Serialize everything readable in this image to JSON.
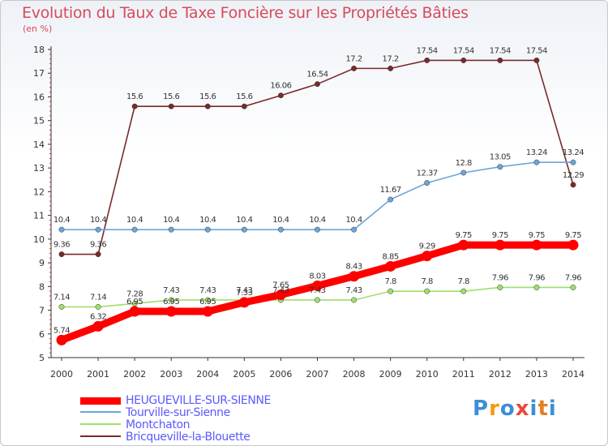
{
  "title": "Evolution du Taux de Taxe Foncière sur les Propriétés Bâties",
  "unit": "(en %)",
  "logo": {
    "letters": [
      "P",
      "r",
      "o",
      "x",
      "i",
      "t",
      "i"
    ],
    "colors": [
      "#3b8fd6",
      "#f39c12",
      "#3b8fd6",
      "#e74c3c",
      "#3b8fd6",
      "#e67e22",
      "#3b8fd6"
    ]
  },
  "chart_data": {
    "type": "line",
    "x": [
      2000,
      2001,
      2002,
      2003,
      2004,
      2005,
      2006,
      2007,
      2008,
      2009,
      2010,
      2011,
      2012,
      2013,
      2014
    ],
    "ylim": [
      5,
      18
    ],
    "yticks": [
      5,
      6,
      7,
      8,
      9,
      10,
      11,
      12,
      13,
      14,
      15,
      16,
      17,
      18
    ],
    "grid": false,
    "legend_position": "bottom-left",
    "series": [
      {
        "name": "HEUGUEVILLE-SUR-SIENNE",
        "color": "#ff0000",
        "emphasis": true,
        "values": [
          5.74,
          6.32,
          6.95,
          6.95,
          6.95,
          7.33,
          7.65,
          8.03,
          8.43,
          8.85,
          9.29,
          9.75,
          9.75,
          9.75,
          9.75
        ],
        "labels": [
          "5.74",
          "6.32",
          "6.95",
          "6.95",
          "6.95",
          "7.33",
          "7.65",
          "8.03",
          "8.43",
          "8.85",
          "9.29",
          "9.75",
          "9.75",
          "9.75",
          "9.75"
        ]
      },
      {
        "name": "Tourville-sur-Sienne",
        "color": "#6aa6d8",
        "emphasis": false,
        "values": [
          10.4,
          10.4,
          10.4,
          10.4,
          10.4,
          10.4,
          10.4,
          10.4,
          10.4,
          11.67,
          12.37,
          12.8,
          13.05,
          13.24,
          13.24
        ],
        "labels": [
          "10.4",
          "10.4",
          "10.4",
          "10.4",
          "10.4",
          "10.4",
          "10.4",
          "10.4",
          "10.4",
          "11.67",
          "12.37",
          "12.8",
          "13.05",
          "13.24",
          "13.24"
        ]
      },
      {
        "name": "Montchaton",
        "color": "#9ee06a",
        "emphasis": false,
        "values": [
          7.14,
          7.14,
          7.28,
          7.43,
          7.43,
          7.43,
          7.43,
          7.43,
          7.43,
          7.8,
          7.8,
          7.8,
          7.96,
          7.96,
          7.96
        ],
        "labels": [
          "7.14",
          "7.14",
          "7.28",
          "7.43",
          "7.43",
          "7.43",
          "7.43",
          "7.43",
          "7.43",
          "7.8",
          "7.8",
          "7.8",
          "7.96",
          "7.96",
          "7.96"
        ]
      },
      {
        "name": "Bricqueville-la-Blouette",
        "color": "#7a2a2a",
        "emphasis": false,
        "values": [
          9.36,
          9.36,
          15.6,
          15.6,
          15.6,
          15.6,
          16.06,
          16.54,
          17.2,
          17.2,
          17.54,
          17.54,
          17.54,
          17.54,
          12.29
        ],
        "labels": [
          "9.36",
          "9.36",
          "15.6",
          "15.6",
          "15.6",
          "15.6",
          "16.06",
          "16.54",
          "17.2",
          "17.2",
          "17.54",
          "17.54",
          "17.54",
          "17.54",
          "12.29"
        ]
      }
    ]
  }
}
